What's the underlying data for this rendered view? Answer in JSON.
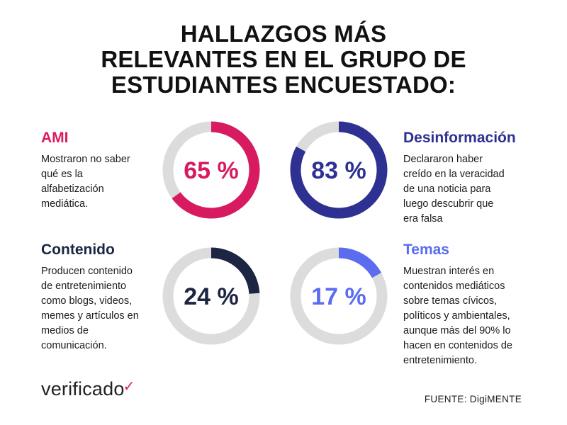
{
  "title": {
    "line1": "HALLAZGOS MÁS",
    "line2": "RELEVANTES EN EL GRUPO DE",
    "line3": "ESTUDIANTES ENCUESTADO:"
  },
  "colors": {
    "ami": "#d81b60",
    "desinformacion": "#2e3192",
    "contenido": "#1c2541",
    "temas": "#5b6cf0",
    "track": "#dcdcdc"
  },
  "chart_data": {
    "type": "pie",
    "title": "HALLAZGOS MÁS RELEVANTES EN EL GRUPO DE ESTUDIANTES ENCUESTADO:",
    "categories": [
      "AMI",
      "Desinformación",
      "Contenido",
      "Temas"
    ],
    "values": [
      65,
      83,
      24,
      17
    ],
    "labels": [
      "65 %",
      "83 %",
      "24 %",
      "17 %"
    ],
    "descriptions": [
      [
        "Mostraron no saber",
        "qué es la",
        "alfabetización",
        "mediática."
      ],
      [
        "Declararon haber",
        "creído en la veracidad",
        "de una noticia para",
        "luego descubrir que",
        "era falsa"
      ],
      [
        "Producen contenido",
        "de entretenimiento",
        "como blogs, videos,",
        "memes y artículos en",
        "medios de",
        "comunicación."
      ],
      [
        "Muestran interés en",
        "contenidos mediáticos",
        "sobre temas cívicos,",
        "políticos y ambientales,",
        "aunque más del 90% lo",
        "hacen en contenidos de",
        "entretenimiento."
      ]
    ]
  },
  "footer": {
    "logo_text": "verificado",
    "logo_mark": "✓",
    "source": "FUENTE: DigiMENTE"
  }
}
